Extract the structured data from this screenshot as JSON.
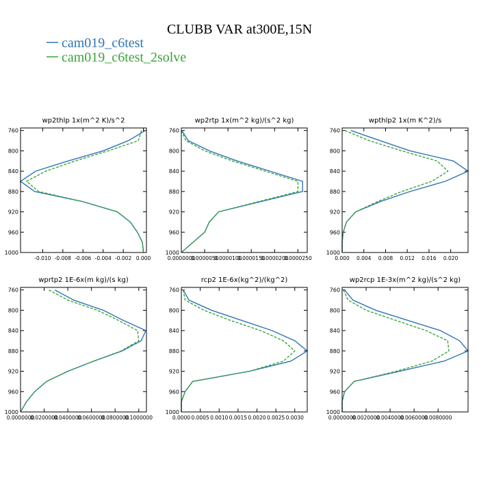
{
  "title": "CLUBB VAR at300E,15N",
  "series": [
    {
      "name": "cam019_c6test",
      "color": "#2f74b5",
      "dash": "none"
    },
    {
      "name": "cam019_c6test_2solve",
      "color": "#3aa43a",
      "dash": "4 2"
    }
  ],
  "chart_data": [
    {
      "type": "line",
      "title": "wp2thlp  1x(m^2 K)/s^2",
      "y": [
        760,
        780,
        800,
        820,
        840,
        860,
        880,
        900,
        920,
        940,
        960,
        980,
        1000
      ],
      "series": [
        {
          "values": [
            0.0002,
            -0.0015,
            -0.004,
            -0.0075,
            -0.0107,
            -0.0122,
            -0.0108,
            -0.006,
            -0.0026,
            -0.0013,
            -0.0006,
            -0.0001,
            0
          ]
        },
        {
          "values": [
            -0.0002,
            -0.0005,
            -0.0035,
            -0.0068,
            -0.0097,
            -0.0116,
            -0.0104,
            -0.006,
            -0.0026,
            -0.0013,
            -0.0006,
            -0.0001,
            0
          ]
        }
      ],
      "xlim": [
        -0.0122,
        0.0003
      ],
      "xticks": [
        {
          "value": -0.01,
          "label": "-0.010"
        },
        {
          "value": -0.008,
          "label": "-0.008"
        },
        {
          "value": -0.006,
          "label": "-0.006"
        },
        {
          "value": -0.004,
          "label": "-0.004"
        },
        {
          "value": -0.002,
          "label": "-0.002"
        },
        {
          "value": 0,
          "label": "0.000"
        }
      ],
      "ylim": [
        755,
        1000
      ],
      "yticks": [
        760,
        800,
        840,
        880,
        920,
        960,
        1000
      ]
    },
    {
      "type": "line",
      "title": "wp2rtp  1x(m^2 kg)/(s^2 kg)",
      "y": [
        760,
        780,
        800,
        820,
        840,
        860,
        880,
        900,
        920,
        940,
        960,
        980,
        1000
      ],
      "series": [
        {
          "values": [
            1e-07,
            1.5e-06,
            6e-06,
            1.2e-05,
            1.9e-05,
            2.6e-05,
            2.6e-05,
            1.7e-05,
            8e-06,
            6e-06,
            5e-06,
            2.5e-06,
            0
          ]
        },
        {
          "values": [
            0,
            1e-06,
            5e-06,
            1.1e-05,
            1.8e-05,
            2.5e-05,
            2.5e-05,
            1.65e-05,
            8e-06,
            6e-06,
            5e-06,
            2.5e-06,
            0
          ]
        }
      ],
      "xlim": [
        0,
        2.7e-05
      ],
      "xticks": [
        {
          "value": 0,
          "label": "0.0000000"
        },
        {
          "value": 5e-06,
          "label": "0.0000050"
        },
        {
          "value": 1e-05,
          "label": "0.0000100"
        },
        {
          "value": 1.5e-05,
          "label": "0.0000150"
        },
        {
          "value": 2e-05,
          "label": "0.0000200"
        },
        {
          "value": 2.5e-05,
          "label": "0.0000250"
        }
      ],
      "ylim": [
        755,
        1000
      ],
      "yticks": [
        760,
        800,
        840,
        880,
        920,
        960,
        1000
      ]
    },
    {
      "type": "line",
      "title": "wpthlp2  1x(m K^2)/s",
      "y": [
        760,
        780,
        800,
        820,
        840,
        860,
        880,
        900,
        920,
        940,
        960,
        980,
        1000
      ],
      "series": [
        {
          "values": [
            0.0016,
            0.007,
            0.0125,
            0.0205,
            0.0232,
            0.019,
            0.0125,
            0.007,
            0.0025,
            0.0008,
            0.0002,
            0,
            0
          ]
        },
        {
          "values": [
            0.0005,
            0.005,
            0.011,
            0.0175,
            0.0195,
            0.0165,
            0.011,
            0.0065,
            0.0025,
            0.0008,
            0.0002,
            0,
            0
          ]
        }
      ],
      "xlim": [
        0,
        0.0232
      ],
      "xticks": [
        {
          "value": 0,
          "label": "0.000"
        },
        0.004,
        0.008,
        0.012,
        0.016,
        {
          "value": 0.02,
          "label": "0.020"
        }
      ],
      "ylim": [
        755,
        1000
      ],
      "yticks": [
        760,
        800,
        840,
        880,
        920,
        960,
        1000
      ]
    },
    {
      "type": "line",
      "title": "wprtp2  1E-6x(m kg)/(s kg)",
      "y": [
        760,
        780,
        800,
        820,
        840,
        860,
        880,
        900,
        920,
        940,
        960,
        980,
        1000
      ],
      "series": [
        {
          "values": [
            0.029,
            0.045,
            0.07,
            0.087,
            0.106,
            0.102,
            0.086,
            0.062,
            0.04,
            0.022,
            0.012,
            0.005,
            0
          ]
        },
        {
          "values": [
            0.024,
            0.04,
            0.065,
            0.083,
            0.099,
            0.1,
            0.085,
            0.062,
            0.04,
            0.022,
            0.012,
            0.005,
            0
          ]
        }
      ],
      "xlim": [
        0,
        0.1065
      ],
      "xticks": [
        {
          "value": 0,
          "label": "0.0000000"
        },
        {
          "value": 0.02,
          "label": "0.0200000"
        },
        {
          "value": 0.04,
          "label": "0.0400000"
        },
        {
          "value": 0.06,
          "label": "0.0600000"
        },
        {
          "value": 0.08,
          "label": "0.0800000"
        },
        {
          "value": 0.1,
          "label": "0.1000000"
        }
      ],
      "ylim": [
        755,
        1000
      ],
      "yticks": [
        760,
        800,
        840,
        880,
        920,
        960,
        1000
      ]
    },
    {
      "type": "line",
      "title": "rcp2  1E-6x(kg^2)/(kg^2)",
      "y": [
        760,
        780,
        800,
        820,
        840,
        860,
        880,
        900,
        920,
        940,
        960,
        980,
        1000
      ],
      "series": [
        {
          "values": [
            5e-05,
            0.0002,
            0.0008,
            0.0016,
            0.0024,
            0.003,
            0.00333,
            0.0029,
            0.0018,
            0.0003,
            0.0001,
            0,
            0
          ]
        },
        {
          "values": [
            5e-05,
            0.0001,
            0.0006,
            0.0013,
            0.0021,
            0.0027,
            0.003,
            0.0027,
            0.0018,
            0.0003,
            0.0001,
            0,
            0
          ]
        }
      ],
      "xlim": [
        0,
        0.00333
      ],
      "xticks": [
        {
          "value": 0,
          "label": "0.0000"
        },
        0.0005,
        {
          "value": 0.001,
          "label": "0.0010"
        },
        0.0015,
        {
          "value": 0.002,
          "label": "0.0020"
        },
        0.0025,
        {
          "value": 0.003,
          "label": "0.0030"
        }
      ],
      "ylim": [
        755,
        1000
      ],
      "yticks": [
        760,
        800,
        840,
        880,
        920,
        960,
        1000
      ]
    },
    {
      "type": "line",
      "title": "wp2rcp  1E-3x(m^2 kg)/(s^2 kg)",
      "y": [
        760,
        780,
        800,
        820,
        840,
        860,
        880,
        900,
        920,
        940,
        960,
        980,
        1000
      ],
      "series": [
        {
          "values": [
            0.0002,
            0.0009,
            0.0028,
            0.0055,
            0.0082,
            0.0098,
            0.0105,
            0.0085,
            0.0048,
            0.001,
            0.0002,
            0,
            0
          ]
        },
        {
          "values": [
            0.0001,
            0.0005,
            0.002,
            0.0045,
            0.007,
            0.0088,
            0.0089,
            0.0075,
            0.0045,
            0.001,
            0.0002,
            0,
            0
          ]
        }
      ],
      "xlim": [
        0,
        0.0105
      ],
      "xticks": [
        {
          "value": 0,
          "label": "0.0000000"
        },
        {
          "value": 0.002,
          "label": "0.0020000"
        },
        {
          "value": 0.004,
          "label": "0.0040000"
        },
        {
          "value": 0.006,
          "label": "0.0060000"
        },
        {
          "value": 0.008,
          "label": "0.0080000"
        }
      ],
      "ylim": [
        755,
        1000
      ],
      "yticks": [
        760,
        800,
        840,
        880,
        920,
        960,
        1000
      ]
    }
  ]
}
